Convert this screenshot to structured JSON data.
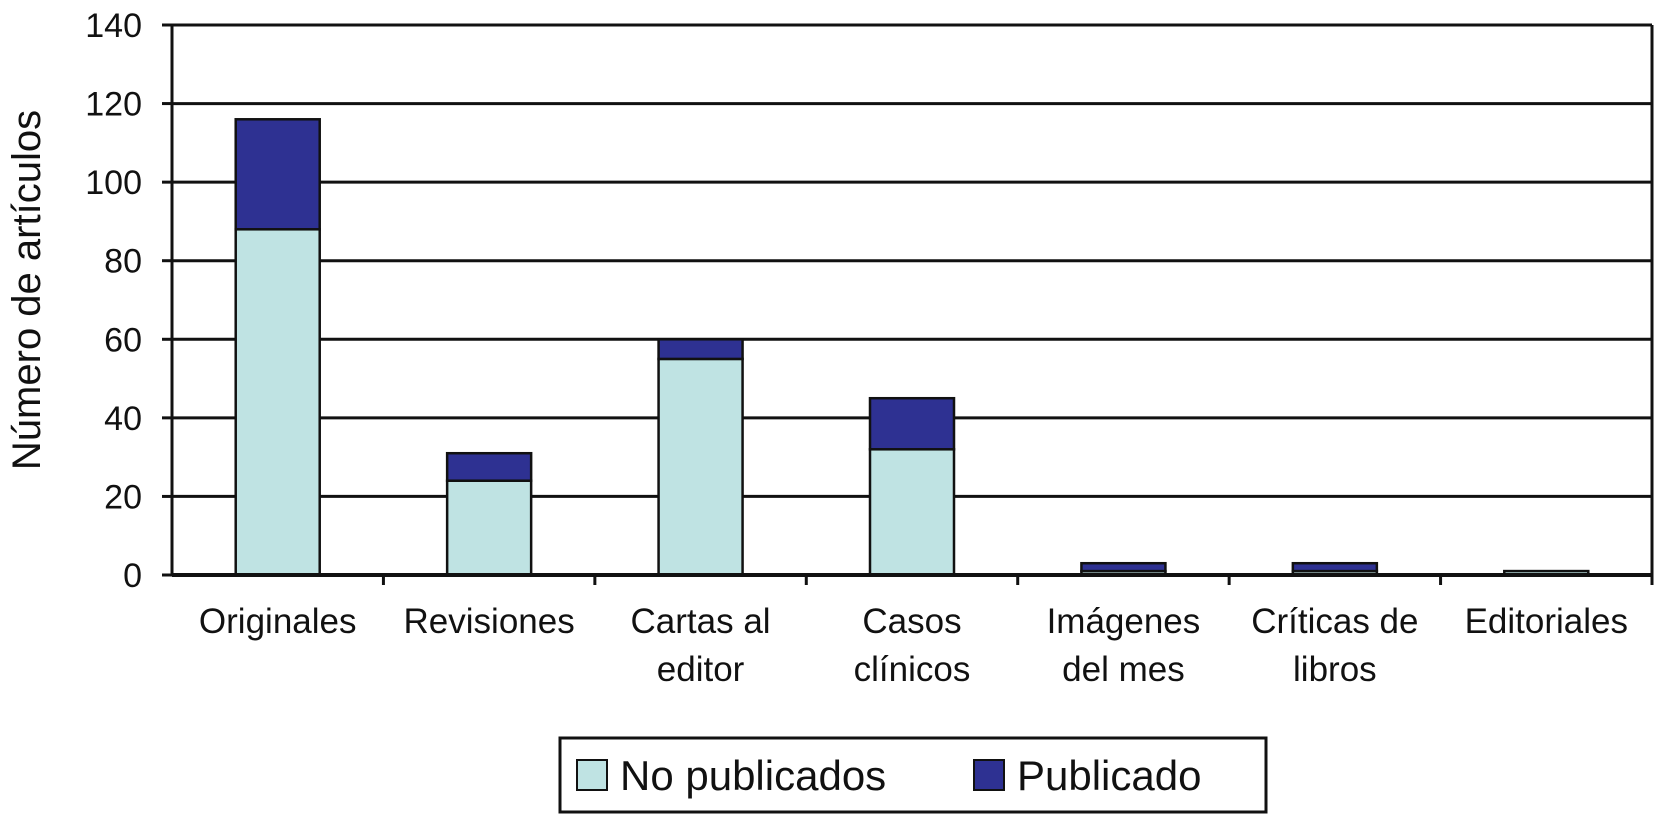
{
  "chart_data": {
    "type": "bar",
    "stacked": true,
    "ylabel": "Número de artículos",
    "ylim": [
      0,
      140
    ],
    "yticks": [
      0,
      20,
      40,
      60,
      80,
      100,
      120,
      140
    ],
    "grid": true,
    "legend_position": "bottom",
    "categories": [
      [
        "Originales"
      ],
      [
        "Revisiones"
      ],
      [
        "Cartas al",
        "editor"
      ],
      [
        "Casos",
        "clínicos"
      ],
      [
        "Imágenes",
        "del mes"
      ],
      [
        "Críticas de",
        "libros"
      ],
      [
        "Editoriales"
      ]
    ],
    "series": [
      {
        "name": "No publicados",
        "color": "#bfe3e3",
        "values": [
          88,
          24,
          55,
          32,
          1,
          1,
          1
        ]
      },
      {
        "name": "Publicado",
        "color": "#2e3192",
        "values": [
          28,
          7,
          5,
          13,
          2,
          2,
          0
        ]
      }
    ]
  }
}
